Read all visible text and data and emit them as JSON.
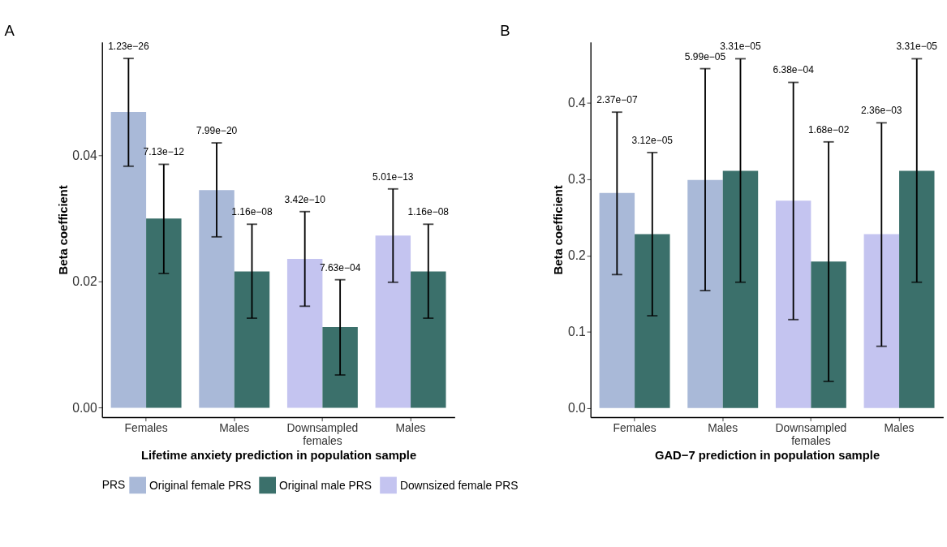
{
  "chart_data": [
    {
      "type": "bar",
      "title": "A",
      "xlabel": "Lifetime anxiety prediction in population sample",
      "ylabel": "Beta coefficient",
      "legend_title": "PRS",
      "legend": "bottom",
      "grid": false,
      "categories": [
        "Females",
        "Males",
        "Downsampled\nfemales",
        "Males"
      ],
      "ylim": [
        -0.0015,
        0.058
      ],
      "yticks": [
        {
          "value": 0,
          "label": "0.00"
        },
        {
          "value": 0.02,
          "label": "0.02"
        },
        {
          "value": 0.04,
          "label": "0.04"
        }
      ],
      "series": [
        {
          "name": "Original female PRS",
          "color": "#a9b9d8",
          "values": [
            0.0469,
            0.0345,
            null,
            null
          ],
          "errors": [
            [
              0.0383,
              0.0554
            ],
            [
              0.0271,
              0.042
            ],
            null,
            null
          ]
        },
        {
          "name": "Original male PRS",
          "color": "#3b706b",
          "values": [
            0.03,
            0.0216,
            0.0128,
            0.0216
          ],
          "errors": [
            [
              0.0213,
              0.0386
            ],
            [
              0.0142,
              0.0291
            ],
            [
              0.0052,
              0.0203
            ],
            [
              0.0142,
              0.0291
            ]
          ]
        },
        {
          "name": "Downsized female PRS",
          "color": "#c4c4f0",
          "values": [
            null,
            null,
            0.0236,
            0.0273
          ],
          "errors": [
            null,
            null,
            [
              0.0161,
              0.0311
            ],
            [
              0.0199,
              0.0347
            ]
          ]
        }
      ],
      "annotations": [
        "1.23e−26",
        "7.13e−12",
        "7.99e−20",
        "1.16e−08",
        "3.42e−10",
        "7.63e−04",
        "5.01e−13",
        "1.16e−08"
      ]
    },
    {
      "type": "bar",
      "title": "B",
      "xlabel": "GAD−7 prediction in population sample",
      "ylabel": "Beta coefficient",
      "grid": false,
      "categories": [
        "Females",
        "Males",
        "Downsampled\nfemales",
        "Males"
      ],
      "ylim": [
        -0.012,
        0.48
      ],
      "yticks": [
        {
          "value": 0,
          "label": "0.0"
        },
        {
          "value": 0.1,
          "label": "0.1"
        },
        {
          "value": 0.2,
          "label": "0.2"
        },
        {
          "value": 0.3,
          "label": "0.3"
        },
        {
          "value": 0.4,
          "label": "0.4"
        }
      ],
      "series": [
        {
          "name": "Original female PRS",
          "color": "#a9b9d8",
          "values": [
            0.282,
            0.299,
            null,
            null
          ],
          "errors": [
            [
              0.175,
              0.388
            ],
            [
              0.154,
              0.445
            ],
            null,
            null
          ]
        },
        {
          "name": "Original male PRS",
          "color": "#3b706b",
          "values": [
            0.228,
            0.311,
            0.192,
            0.311
          ],
          "errors": [
            [
              0.121,
              0.335
            ],
            [
              0.165,
              0.458
            ],
            [
              0.035,
              0.349
            ],
            [
              0.165,
              0.458
            ]
          ]
        },
        {
          "name": "Downsized female PRS",
          "color": "#c4c4f0",
          "values": [
            null,
            null,
            0.272,
            0.228
          ],
          "errors": [
            null,
            null,
            [
              0.116,
              0.427
            ],
            [
              0.081,
              0.374
            ]
          ]
        }
      ],
      "annotations": [
        "2.37e−07",
        "3.12e−05",
        "5.99e−05",
        "3.31e−05",
        "6.38e−04",
        "1.68e−02",
        "2.36e−03",
        "3.31e−05"
      ]
    }
  ]
}
